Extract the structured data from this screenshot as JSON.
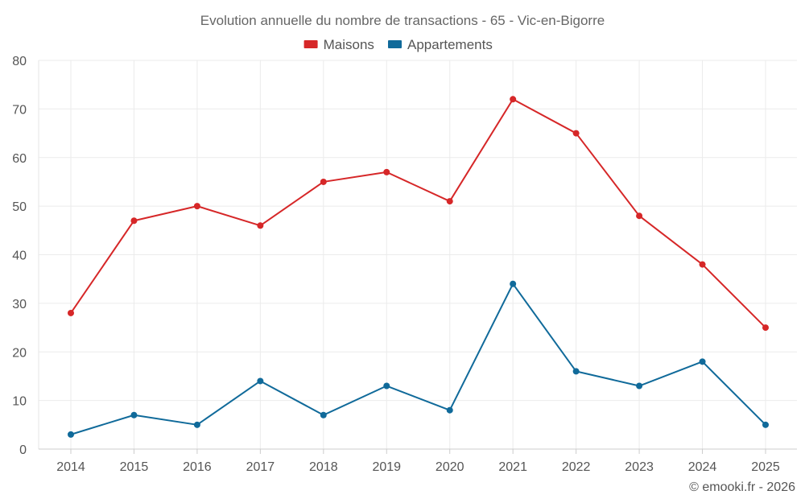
{
  "chart_data": {
    "type": "line",
    "title": "Evolution annuelle du nombre de transactions - 65 - Vic-en-Bigorre",
    "xlabel": "",
    "ylabel": "",
    "categories": [
      "2014",
      "2015",
      "2016",
      "2017",
      "2018",
      "2019",
      "2020",
      "2021",
      "2022",
      "2023",
      "2024",
      "2025"
    ],
    "ylim": [
      0,
      80
    ],
    "yticks": [
      0,
      10,
      20,
      30,
      40,
      50,
      60,
      70,
      80
    ],
    "grid": true,
    "legend_position": "top-center",
    "series": [
      {
        "name": "Maisons",
        "color": "#d62728",
        "values": [
          28,
          47,
          50,
          46,
          55,
          57,
          51,
          72,
          65,
          48,
          38,
          25
        ]
      },
      {
        "name": "Appartements",
        "color": "#106a9a",
        "values": [
          3,
          7,
          5,
          14,
          7,
          13,
          8,
          34,
          16,
          13,
          18,
          5
        ]
      }
    ],
    "credit": "© emooki.fr - 2026"
  }
}
